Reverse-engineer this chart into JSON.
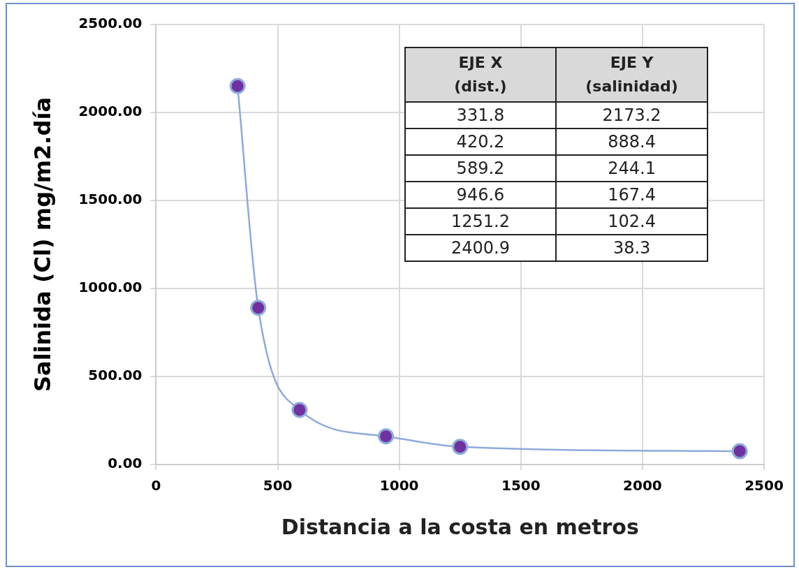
{
  "chart_data": [
    {
      "type": "line",
      "xlabel": "Distancia a la costa en metros",
      "ylabel": "Salinida (Cl) mg/m2.día",
      "x": [
        335,
        420,
        590,
        945,
        1250,
        2400
      ],
      "series": [
        {
          "color": "#7030a0",
          "values": [
            2150,
            890,
            310,
            160,
            100,
            75
          ]
        }
      ],
      "xlim": [
        0,
        2500
      ],
      "xticks": [
        0,
        500,
        1000,
        1500,
        2000,
        2500
      ],
      "ylim": [
        0,
        2500
      ],
      "yticks": [
        {
          "value": 0,
          "label": "0.00"
        },
        {
          "value": 500,
          "label": "500.00"
        },
        {
          "value": 1000,
          "label": "1000.00"
        },
        {
          "value": 1500,
          "label": "1500.00"
        },
        {
          "value": 2000,
          "label": "2000.00"
        },
        {
          "value": 2500,
          "label": "2500.00"
        }
      ],
      "grid": true,
      "marker": "circle",
      "line_style": "solid"
    },
    {
      "type": "other",
      "annotations": [
        "EJE X (dist.)",
        "EJE Y (salinidad)",
        "331.8",
        "2173.2",
        "420.2",
        "888.4",
        "589.2",
        "244.1",
        "946.6",
        "167.4",
        "1251.2",
        "102.4",
        "2400.9",
        "38.3"
      ]
    }
  ]
}
